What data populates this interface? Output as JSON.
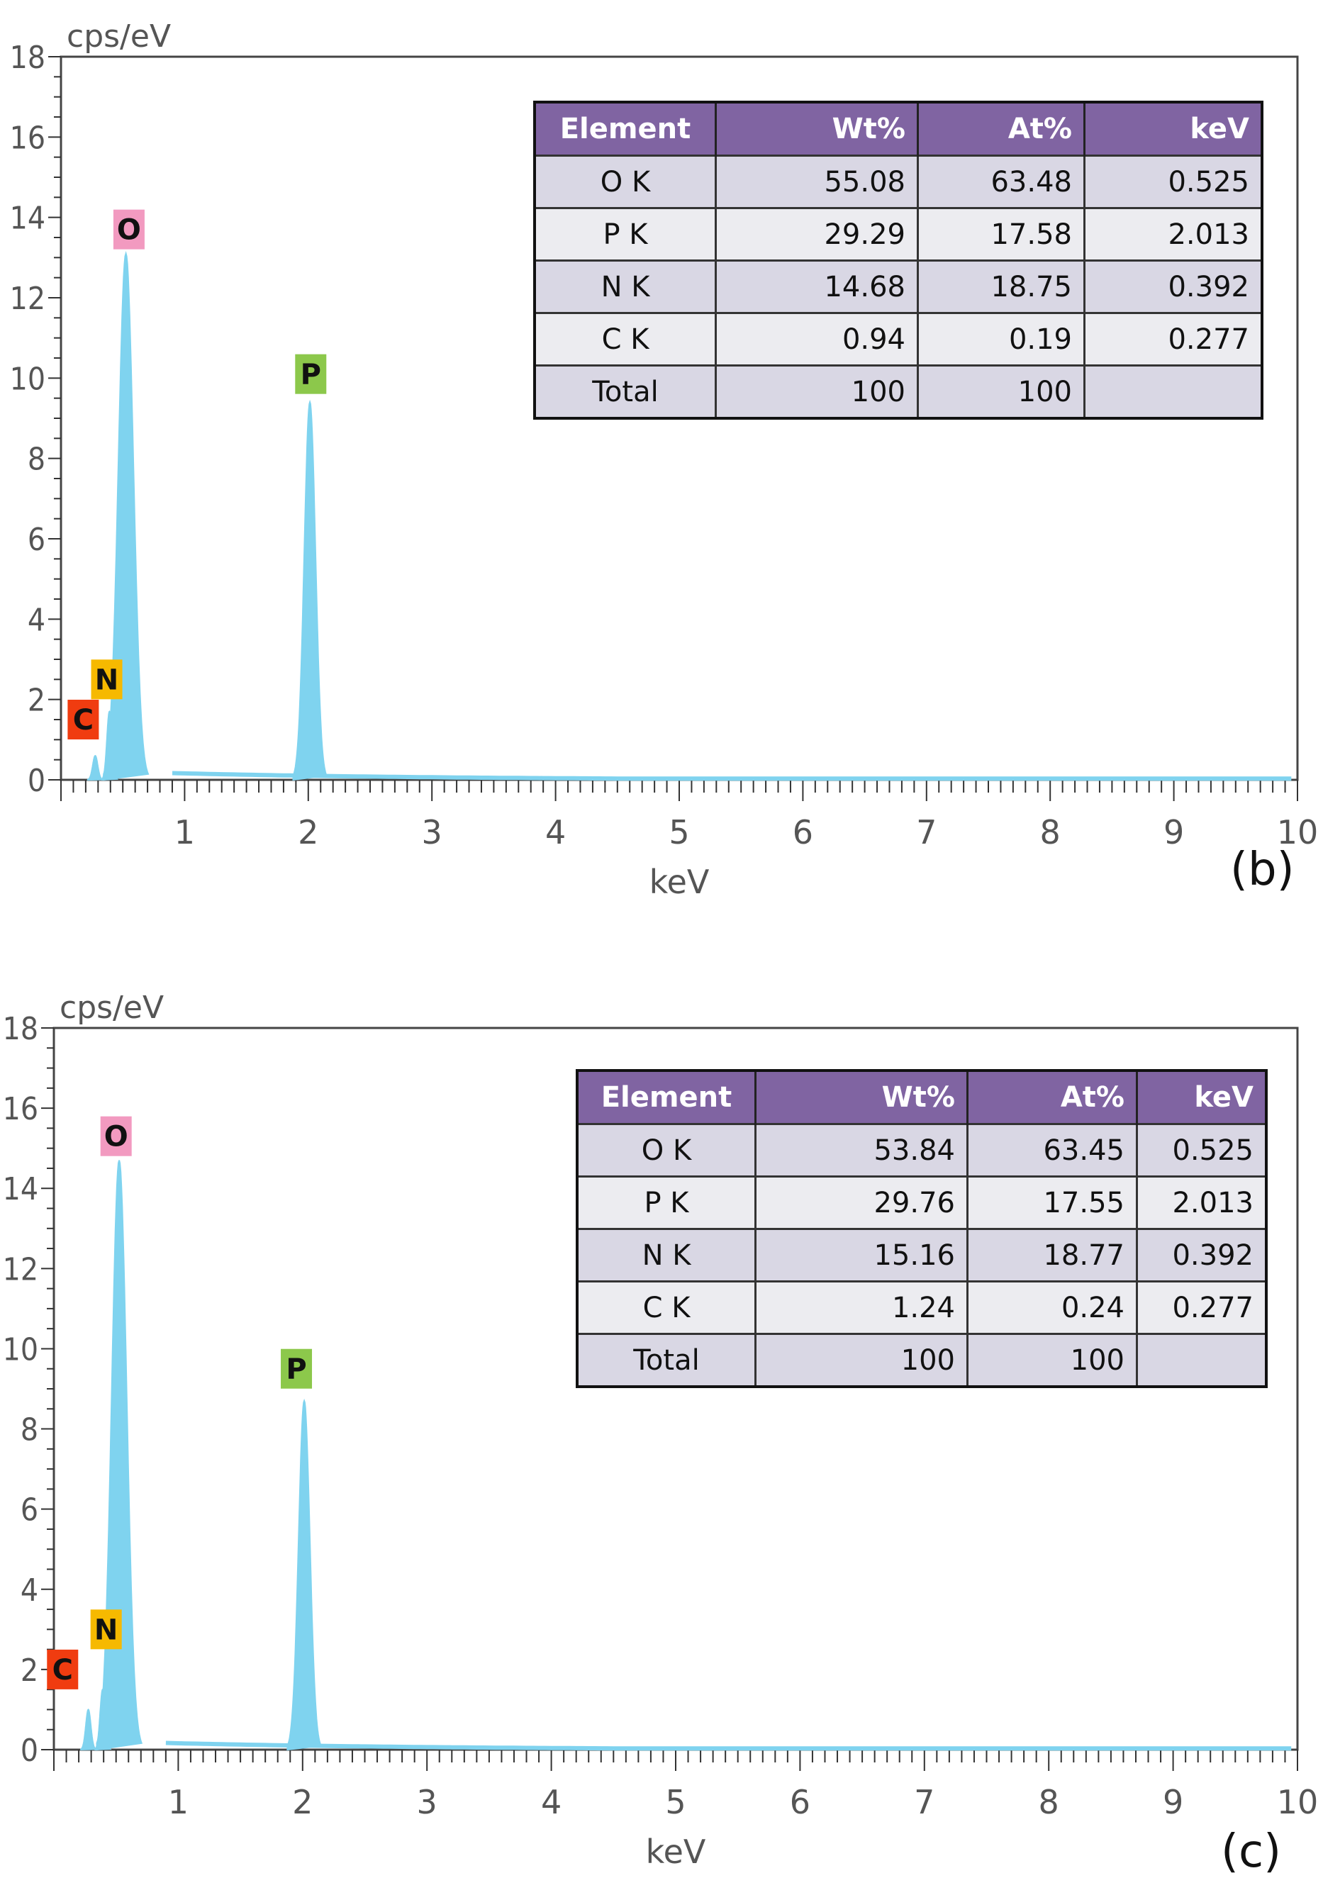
{
  "colors": {
    "spectrum": "#7fd3ef",
    "table_header": "#8064a2",
    "row_odd": "#d9d7e4",
    "row_even": "#ececf0",
    "label_O": "#f29ac0",
    "label_P": "#8cc84b",
    "label_N": "#f6b900",
    "label_C": "#f03c10"
  },
  "chart_data": [
    {
      "type": "area",
      "panel_label": "(b)",
      "ylabel": "cps/eV",
      "xlabel": "keV",
      "xlim": [
        0,
        10
      ],
      "ylim": [
        0,
        18
      ],
      "x_ticks": [
        1,
        2,
        3,
        4,
        5,
        6,
        7,
        8,
        9,
        10
      ],
      "y_ticks": [
        0,
        2,
        4,
        6,
        8,
        10,
        12,
        14,
        16,
        18
      ],
      "peaks": [
        {
          "element": "C",
          "kev": 0.277,
          "height": 0.6
        },
        {
          "element": "N",
          "kev": 0.392,
          "height": 1.7
        },
        {
          "element": "O",
          "kev": 0.525,
          "height": 13.1
        },
        {
          "element": "P",
          "kev": 2.013,
          "height": 9.4
        }
      ],
      "peak_labels": [
        {
          "text": "O",
          "kev": 0.55,
          "y": 13.7,
          "color_key": "label_O"
        },
        {
          "text": "P",
          "kev": 2.02,
          "y": 10.1,
          "color_key": "label_P"
        },
        {
          "text": "N",
          "kev": 0.37,
          "y": 2.5,
          "color_key": "label_N"
        },
        {
          "text": "C",
          "kev": 0.18,
          "y": 1.5,
          "color_key": "label_C"
        }
      ],
      "table": {
        "headers": [
          "Element",
          "Wt%",
          "At%",
          "keV"
        ],
        "rows": [
          [
            "O K",
            "55.08",
            "63.48",
            "0.525"
          ],
          [
            "P K",
            "29.29",
            "17.58",
            "2.013"
          ],
          [
            "N K",
            "14.68",
            "18.75",
            "0.392"
          ],
          [
            "C K",
            "0.94",
            "0.19",
            "0.277"
          ],
          [
            "Total",
            "100",
            "100",
            ""
          ]
        ]
      }
    },
    {
      "type": "area",
      "panel_label": "(c)",
      "ylabel": "cps/eV",
      "xlabel": "keV",
      "xlim": [
        0,
        10
      ],
      "ylim": [
        0,
        18
      ],
      "x_ticks": [
        1,
        2,
        3,
        4,
        5,
        6,
        7,
        8,
        9,
        10
      ],
      "y_ticks": [
        0,
        2,
        4,
        6,
        8,
        10,
        12,
        14,
        16,
        18
      ],
      "peaks": [
        {
          "element": "C",
          "kev": 0.277,
          "height": 1.0
        },
        {
          "element": "N",
          "kev": 0.392,
          "height": 1.5
        },
        {
          "element": "O",
          "kev": 0.525,
          "height": 14.7
        },
        {
          "element": "P",
          "kev": 2.013,
          "height": 8.7
        }
      ],
      "peak_labels": [
        {
          "text": "O",
          "kev": 0.5,
          "y": 15.3,
          "color_key": "label_O"
        },
        {
          "text": "P",
          "kev": 1.95,
          "y": 9.5,
          "color_key": "label_P"
        },
        {
          "text": "N",
          "kev": 0.42,
          "y": 3.0,
          "color_key": "label_N"
        },
        {
          "text": "C",
          "kev": 0.07,
          "y": 2.0,
          "color_key": "label_C"
        }
      ],
      "table": {
        "headers": [
          "Element",
          "Wt%",
          "At%",
          "keV"
        ],
        "rows": [
          [
            "O K",
            "53.84",
            "63.45",
            "0.525"
          ],
          [
            "P K",
            "29.76",
            "17.55",
            "2.013"
          ],
          [
            "N K",
            "15.16",
            "18.77",
            "0.392"
          ],
          [
            "C K",
            "1.24",
            "0.24",
            "0.277"
          ],
          [
            "Total",
            "100",
            "100",
            ""
          ]
        ]
      }
    }
  ]
}
